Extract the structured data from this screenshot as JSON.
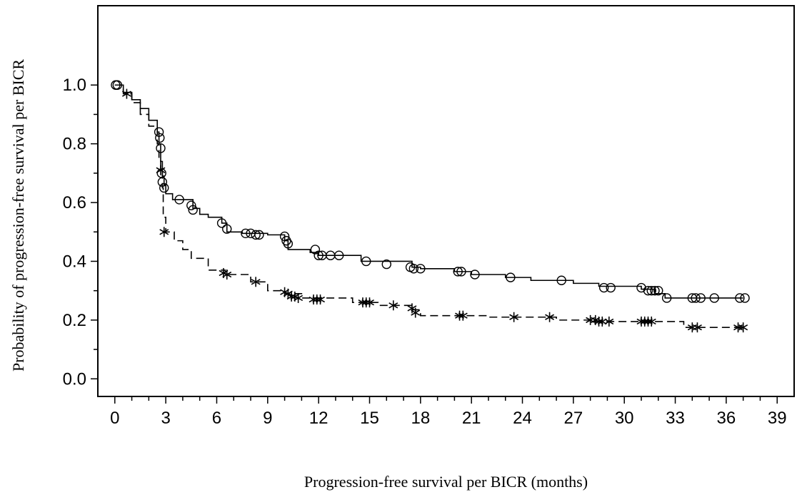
{
  "chart_data": {
    "type": "line",
    "title": "",
    "xlabel": "Progression-free survival per BICR (months)",
    "ylabel": "Probability of progression-free survival per BICR",
    "xlim": [
      -1,
      40
    ],
    "ylim": [
      -0.06,
      1.27
    ],
    "x_ticks": [
      0,
      3,
      6,
      9,
      12,
      15,
      18,
      21,
      24,
      27,
      30,
      33,
      36,
      39
    ],
    "y_ticks": [
      0.0,
      0.2,
      0.4,
      0.6,
      0.8,
      1.0
    ],
    "y_tick_labels": [
      "0.0",
      "0.2",
      "0.4",
      "0.6",
      "0.8",
      "1.0"
    ],
    "grid": false,
    "series": [
      {
        "style": "solid",
        "marker": "circle",
        "color": "#000000",
        "x": [
          0,
          0.5,
          1.0,
          1.5,
          2.0,
          2.5,
          2.6,
          2.7,
          2.8,
          2.9,
          3.0,
          3.4,
          4.6,
          5.0,
          5.5,
          6.3,
          6.6,
          7.5,
          9.0,
          10.0,
          10.2,
          11.5,
          12.0,
          14.5,
          17.5,
          18.0,
          20.0,
          21.0,
          23.0,
          24.5,
          27.0,
          28.5,
          31.0,
          31.8,
          32.4,
          37.0
        ],
        "y": [
          1.0,
          0.975,
          0.95,
          0.92,
          0.88,
          0.84,
          0.8,
          0.74,
          0.69,
          0.66,
          0.63,
          0.61,
          0.58,
          0.56,
          0.55,
          0.53,
          0.5,
          0.495,
          0.49,
          0.47,
          0.44,
          0.43,
          0.42,
          0.4,
          0.38,
          0.375,
          0.365,
          0.355,
          0.345,
          0.335,
          0.325,
          0.315,
          0.305,
          0.29,
          0.275,
          0.275
        ],
        "censored": [
          [
            0.05,
            1.0
          ],
          [
            0.15,
            1.0
          ],
          [
            2.6,
            0.84
          ],
          [
            2.65,
            0.82
          ],
          [
            2.7,
            0.785
          ],
          [
            2.75,
            0.7
          ],
          [
            2.8,
            0.67
          ],
          [
            2.9,
            0.65
          ],
          [
            3.8,
            0.61
          ],
          [
            4.5,
            0.59
          ],
          [
            4.6,
            0.575
          ],
          [
            6.3,
            0.53
          ],
          [
            6.6,
            0.51
          ],
          [
            7.7,
            0.495
          ],
          [
            8.0,
            0.495
          ],
          [
            8.3,
            0.49
          ],
          [
            8.5,
            0.49
          ],
          [
            10.0,
            0.485
          ],
          [
            10.1,
            0.47
          ],
          [
            10.2,
            0.46
          ],
          [
            11.8,
            0.44
          ],
          [
            12.0,
            0.42
          ],
          [
            12.2,
            0.42
          ],
          [
            12.7,
            0.42
          ],
          [
            13.2,
            0.42
          ],
          [
            14.8,
            0.4
          ],
          [
            16.0,
            0.39
          ],
          [
            17.4,
            0.38
          ],
          [
            17.6,
            0.375
          ],
          [
            18.0,
            0.375
          ],
          [
            20.2,
            0.365
          ],
          [
            20.4,
            0.365
          ],
          [
            21.2,
            0.355
          ],
          [
            23.3,
            0.345
          ],
          [
            26.3,
            0.335
          ],
          [
            28.8,
            0.31
          ],
          [
            29.2,
            0.31
          ],
          [
            31.0,
            0.31
          ],
          [
            31.4,
            0.3
          ],
          [
            31.6,
            0.3
          ],
          [
            31.8,
            0.3
          ],
          [
            32.0,
            0.3
          ],
          [
            32.5,
            0.275
          ],
          [
            34.0,
            0.275
          ],
          [
            34.2,
            0.275
          ],
          [
            34.5,
            0.275
          ],
          [
            35.3,
            0.275
          ],
          [
            36.8,
            0.275
          ],
          [
            37.1,
            0.275
          ]
        ]
      },
      {
        "style": "dashed",
        "marker": "asterisk",
        "color": "#000000",
        "x": [
          0,
          0.5,
          1.0,
          1.5,
          2.0,
          2.5,
          2.6,
          2.7,
          2.8,
          2.85,
          3.0,
          3.5,
          4.0,
          4.5,
          5.5,
          6.5,
          8.0,
          9.0,
          10.0,
          11.0,
          14.0,
          15.5,
          17.5,
          18.0,
          20.0,
          22.0,
          24.0,
          26.0,
          28.0,
          31.5,
          33.5,
          37.0
        ],
        "y": [
          1.0,
          0.97,
          0.94,
          0.9,
          0.86,
          0.8,
          0.75,
          0.71,
          0.65,
          0.55,
          0.5,
          0.47,
          0.44,
          0.41,
          0.37,
          0.355,
          0.33,
          0.3,
          0.29,
          0.275,
          0.26,
          0.25,
          0.235,
          0.215,
          0.215,
          0.21,
          0.21,
          0.2,
          0.195,
          0.195,
          0.175,
          0.175
        ],
        "censored": [
          [
            0.7,
            0.97
          ],
          [
            2.7,
            0.71
          ],
          [
            2.9,
            0.5
          ],
          [
            6.4,
            0.36
          ],
          [
            6.6,
            0.355
          ],
          [
            8.3,
            0.33
          ],
          [
            10.0,
            0.295
          ],
          [
            10.2,
            0.29
          ],
          [
            10.4,
            0.28
          ],
          [
            10.6,
            0.28
          ],
          [
            10.8,
            0.275
          ],
          [
            11.7,
            0.27
          ],
          [
            11.9,
            0.27
          ],
          [
            12.1,
            0.27
          ],
          [
            14.6,
            0.26
          ],
          [
            14.8,
            0.26
          ],
          [
            15.0,
            0.26
          ],
          [
            16.4,
            0.25
          ],
          [
            17.5,
            0.24
          ],
          [
            17.7,
            0.225
          ],
          [
            20.3,
            0.215
          ],
          [
            20.5,
            0.215
          ],
          [
            23.5,
            0.21
          ],
          [
            25.6,
            0.21
          ],
          [
            28.0,
            0.2
          ],
          [
            28.3,
            0.2
          ],
          [
            28.5,
            0.195
          ],
          [
            28.7,
            0.195
          ],
          [
            29.1,
            0.195
          ],
          [
            31.0,
            0.195
          ],
          [
            31.2,
            0.195
          ],
          [
            31.4,
            0.195
          ],
          [
            31.6,
            0.195
          ],
          [
            34.0,
            0.175
          ],
          [
            34.3,
            0.175
          ],
          [
            36.7,
            0.175
          ],
          [
            37.0,
            0.175
          ]
        ]
      }
    ]
  }
}
